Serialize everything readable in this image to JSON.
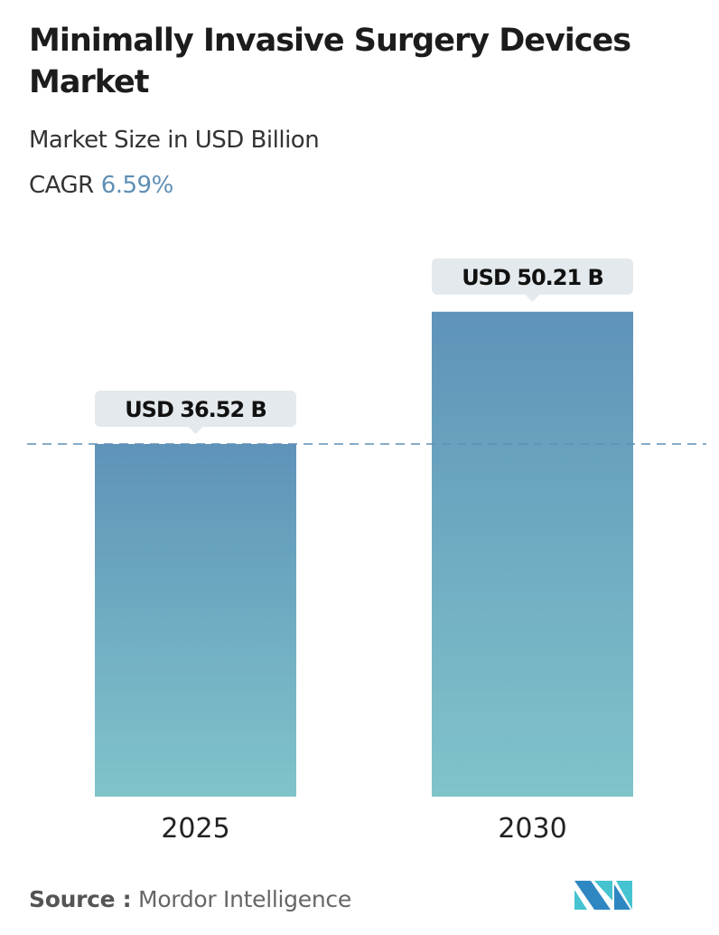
{
  "header": {
    "title": "Minimally Invasive Surgery Devices Market",
    "subtitle": "Market Size in USD Billion",
    "cagr_label": "CAGR",
    "cagr_value": "6.59%"
  },
  "chart_data": {
    "type": "bar",
    "categories": [
      "2025",
      "2030"
    ],
    "values": [
      36.52,
      50.21
    ],
    "data_labels": [
      "USD 36.52 B",
      "USD 50.21 B"
    ],
    "ylabel": "Market Size in USD Billion",
    "reference_line": 36.52,
    "grid": false,
    "colors": {
      "bar_top": "#5f93b9",
      "bar_bottom": "#80c4ca",
      "label_bg": "#e3e9ec",
      "dash": "#5f8fb5"
    }
  },
  "footer": {
    "source_label": "Source :",
    "source_value": "Mordor Intelligence",
    "logo_text": "MI"
  }
}
